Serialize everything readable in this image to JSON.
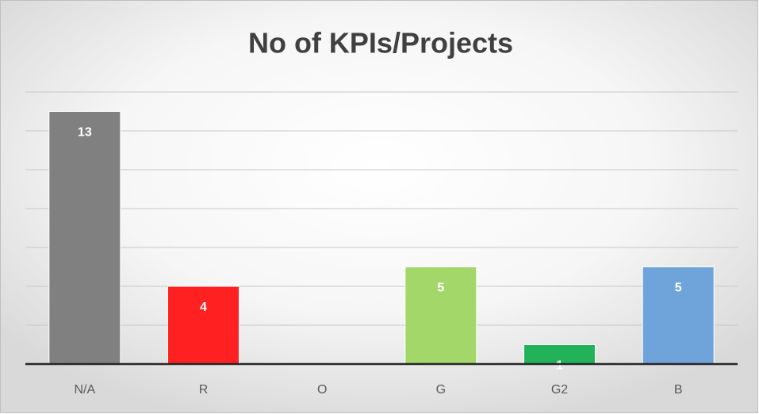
{
  "chart_data": {
    "type": "bar",
    "title": "No of KPIs/Projects",
    "categories": [
      "N/A",
      "R",
      "O",
      "G",
      "G2",
      "B"
    ],
    "values": [
      13,
      4,
      null,
      5,
      1,
      5
    ],
    "colors": [
      "#808080",
      "#ff2121",
      "#ffa500",
      "#a3d76a",
      "#22b35a",
      "#6fa4db"
    ],
    "ylim": [
      0,
      14
    ],
    "yticks": [
      0,
      2,
      4,
      6,
      8,
      10,
      12,
      14
    ],
    "grid": true
  }
}
